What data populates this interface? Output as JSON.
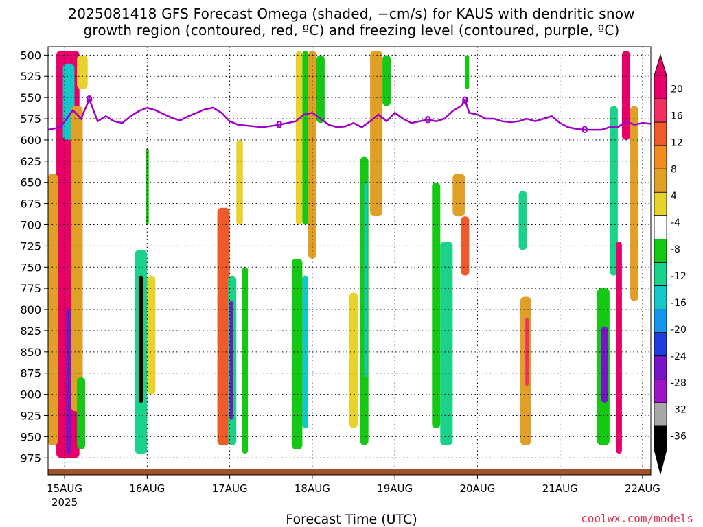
{
  "chart_data": {
    "type": "heatmap",
    "title_line1": "2025081418 GFS Forecast Omega (shaded, −cm/s) for KAUS with dendritic snow",
    "title_line2": "growth region (contoured, red, ºC) and freezing level (contoured, purple, ºC)",
    "xlabel": "Forecast Time (UTC)",
    "x_ticks": [
      "15AUG",
      "16AUG",
      "17AUG",
      "18AUG",
      "19AUG",
      "20AUG",
      "21AUG",
      "22AUG"
    ],
    "x_tick_sub": [
      "2025",
      "",
      "",
      "",
      "",
      "",
      "",
      ""
    ],
    "y_ticks": [
      500,
      525,
      550,
      575,
      600,
      625,
      650,
      675,
      700,
      725,
      750,
      775,
      800,
      825,
      850,
      875,
      900,
      925,
      950,
      975
    ],
    "ylim_hpa": [
      490,
      995
    ],
    "xlim_days": [
      0.0,
      7.3
    ],
    "grid": true,
    "colorbar": {
      "labels": [
        20,
        16,
        12,
        8,
        4,
        -4,
        -8,
        -12,
        -16,
        -20,
        -24,
        -28,
        -32,
        -36
      ],
      "colors": [
        "#e8006a",
        "#f03060",
        "#ee5a28",
        "#f08c20",
        "#e0a028",
        "#e8d22c",
        "#ffffff",
        "#14c814",
        "#1ad28a",
        "#14c8c8",
        "#1496f0",
        "#1e3cdc",
        "#7814c8",
        "#a014c8",
        "#a8a8a8",
        "#000000"
      ]
    },
    "freezing_level": {
      "label": "0",
      "color": "#a000c8",
      "days": [
        0.0,
        0.15,
        0.3,
        0.4,
        0.5,
        0.6,
        0.7,
        0.8,
        0.9,
        1.0,
        1.1,
        1.2,
        1.3,
        1.5,
        1.6,
        1.7,
        1.8,
        1.9,
        2.0,
        2.1,
        2.2,
        2.3,
        2.4,
        2.6,
        2.8,
        3.0,
        3.1,
        3.2,
        3.3,
        3.4,
        3.5,
        3.6,
        3.7,
        3.8,
        3.9,
        4.0,
        4.1,
        4.2,
        4.3,
        4.4,
        4.5,
        4.6,
        4.7,
        4.8,
        4.9,
        5.0,
        5.05,
        5.1,
        5.2,
        5.3,
        5.4,
        5.5,
        5.6,
        5.7,
        5.8,
        5.9,
        6.0,
        6.1,
        6.2,
        6.3,
        6.4,
        6.5,
        6.6,
        6.7,
        6.8,
        6.9,
        7.0,
        7.1,
        7.2,
        7.3
      ],
      "hpa": [
        588,
        585,
        565,
        575,
        552,
        578,
        572,
        578,
        580,
        572,
        566,
        562,
        565,
        574,
        577,
        572,
        568,
        564,
        562,
        568,
        578,
        582,
        583,
        585,
        582,
        578,
        570,
        568,
        575,
        582,
        585,
        584,
        580,
        585,
        578,
        570,
        578,
        568,
        575,
        580,
        578,
        576,
        578,
        575,
        566,
        560,
        553,
        568,
        570,
        575,
        575,
        578,
        579,
        578,
        575,
        578,
        575,
        572,
        580,
        585,
        587,
        588,
        588,
        588,
        585,
        585,
        578,
        582,
        580,
        581
      ]
    },
    "omega_regions": [
      {
        "d0": 0.1,
        "d1": 0.38,
        "p0": 495,
        "p1": 975,
        "v": 20
      },
      {
        "d0": 0.18,
        "d1": 0.32,
        "p0": 510,
        "p1": 600,
        "v": -16
      },
      {
        "d0": 0.28,
        "d1": 0.42,
        "p0": 560,
        "p1": 920,
        "v": 8
      },
      {
        "d0": 0.22,
        "d1": 0.28,
        "p0": 800,
        "p1": 970,
        "v": -24
      },
      {
        "d0": 0.0,
        "d1": 0.12,
        "p0": 640,
        "p1": 960,
        "v": 8
      },
      {
        "d0": 0.35,
        "d1": 0.45,
        "p0": 880,
        "p1": 965,
        "v": -8
      },
      {
        "d0": 0.35,
        "d1": 0.48,
        "p0": 500,
        "p1": 540,
        "v": 4
      },
      {
        "d0": 1.05,
        "d1": 1.2,
        "p0": 730,
        "p1": 970,
        "v": -12
      },
      {
        "d0": 1.1,
        "d1": 1.15,
        "p0": 760,
        "p1": 910,
        "v": -36
      },
      {
        "d0": 1.2,
        "d1": 1.3,
        "p0": 760,
        "p1": 900,
        "v": 4
      },
      {
        "d0": 1.18,
        "d1": 1.22,
        "p0": 610,
        "p1": 700,
        "v": -8
      },
      {
        "d0": 2.05,
        "d1": 2.2,
        "p0": 680,
        "p1": 960,
        "v": 12
      },
      {
        "d0": 2.18,
        "d1": 2.28,
        "p0": 760,
        "p1": 960,
        "v": -12
      },
      {
        "d0": 2.2,
        "d1": 2.24,
        "p0": 790,
        "p1": 930,
        "v": -24
      },
      {
        "d0": 2.28,
        "d1": 2.36,
        "p0": 600,
        "p1": 700,
        "v": 4
      },
      {
        "d0": 2.35,
        "d1": 2.42,
        "p0": 750,
        "p1": 970,
        "v": -8
      },
      {
        "d0": 3.0,
        "d1": 3.08,
        "p0": 495,
        "p1": 700,
        "v": 4
      },
      {
        "d0": 3.08,
        "d1": 3.15,
        "p0": 495,
        "p1": 700,
        "v": -8
      },
      {
        "d0": 2.95,
        "d1": 3.08,
        "p0": 740,
        "p1": 965,
        "v": -8
      },
      {
        "d0": 3.08,
        "d1": 3.15,
        "p0": 760,
        "p1": 940,
        "v": -16
      },
      {
        "d0": 3.15,
        "d1": 3.25,
        "p0": 495,
        "p1": 740,
        "v": 8
      },
      {
        "d0": 3.25,
        "d1": 3.35,
        "p0": 500,
        "p1": 580,
        "v": -8
      },
      {
        "d0": 3.65,
        "d1": 3.75,
        "p0": 780,
        "p1": 940,
        "v": 4
      },
      {
        "d0": 3.78,
        "d1": 3.88,
        "p0": 620,
        "p1": 960,
        "v": -8
      },
      {
        "d0": 3.83,
        "d1": 3.87,
        "p0": 650,
        "p1": 880,
        "v": -16
      },
      {
        "d0": 3.9,
        "d1": 4.05,
        "p0": 495,
        "p1": 690,
        "v": 8
      },
      {
        "d0": 4.05,
        "d1": 4.15,
        "p0": 500,
        "p1": 560,
        "v": -8
      },
      {
        "d0": 4.65,
        "d1": 4.75,
        "p0": 650,
        "p1": 940,
        "v": -8
      },
      {
        "d0": 4.75,
        "d1": 4.9,
        "p0": 720,
        "p1": 960,
        "v": -12
      },
      {
        "d0": 4.9,
        "d1": 5.05,
        "p0": 640,
        "p1": 690,
        "v": 8
      },
      {
        "d0": 5.0,
        "d1": 5.1,
        "p0": 690,
        "p1": 760,
        "v": 12
      },
      {
        "d0": 5.05,
        "d1": 5.1,
        "p0": 500,
        "p1": 540,
        "v": -8
      },
      {
        "d0": 5.7,
        "d1": 5.8,
        "p0": 660,
        "p1": 730,
        "v": -12
      },
      {
        "d0": 5.72,
        "d1": 5.85,
        "p0": 785,
        "p1": 960,
        "v": 8
      },
      {
        "d0": 5.78,
        "d1": 5.82,
        "p0": 810,
        "p1": 890,
        "v": 16
      },
      {
        "d0": 6.65,
        "d1": 6.8,
        "p0": 775,
        "p1": 960,
        "v": -8
      },
      {
        "d0": 6.7,
        "d1": 6.78,
        "p0": 820,
        "p1": 910,
        "v": -24
      },
      {
        "d0": 6.8,
        "d1": 6.9,
        "p0": 560,
        "p1": 760,
        "v": -12
      },
      {
        "d0": 6.88,
        "d1": 6.95,
        "p0": 720,
        "p1": 970,
        "v": 20
      },
      {
        "d0": 6.95,
        "d1": 7.05,
        "p0": 495,
        "p1": 600,
        "v": 20
      },
      {
        "d0": 7.05,
        "d1": 7.15,
        "p0": 560,
        "p1": 790,
        "v": 8
      }
    ]
  },
  "credit": "coolwx.com/models"
}
